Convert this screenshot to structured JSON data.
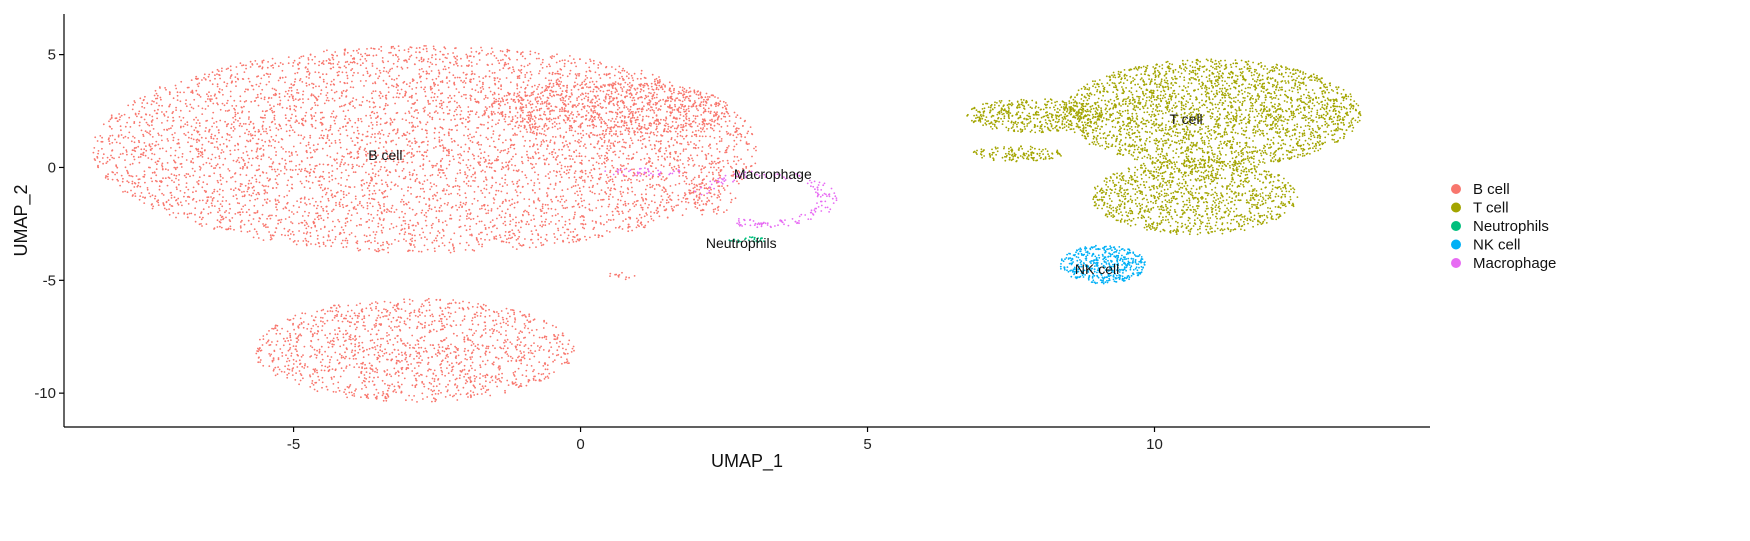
{
  "chart_data": {
    "type": "scatter",
    "xlabel": "UMAP_1",
    "ylabel": "UMAP_2",
    "xlim": [
      -9.0,
      14.8
    ],
    "ylim": [
      -11.5,
      6.8
    ],
    "x_ticks": [
      -5,
      0,
      5,
      10
    ],
    "y_ticks": [
      -10,
      -5,
      0,
      5
    ],
    "grid": false,
    "legend_position": "right",
    "series": [
      {
        "name": "B cell",
        "color": "#F8766D"
      },
      {
        "name": "T cell",
        "color": "#A3A500"
      },
      {
        "name": "Neutrophils",
        "color": "#00BF7D"
      },
      {
        "name": "NK cell",
        "color": "#00B0F6"
      },
      {
        "name": "Macrophage",
        "color": "#E76BF3"
      }
    ],
    "clusters": [
      {
        "series": "B cell",
        "shape": "ellipse",
        "cx": -2.7,
        "cy": 0.8,
        "rx": 5.8,
        "ry": 4.6,
        "n": 5200
      },
      {
        "series": "B cell",
        "shape": "ellipse",
        "cx": -2.9,
        "cy": -8.1,
        "rx": 2.8,
        "ry": 2.3,
        "n": 1400
      },
      {
        "series": "B cell",
        "shape": "ellipse",
        "cx": 0.5,
        "cy": 2.6,
        "rx": 2.1,
        "ry": 1.2,
        "n": 700
      },
      {
        "series": "B cell",
        "shape": "ellipse",
        "cx": 2.3,
        "cy": -1.3,
        "rx": 0.45,
        "ry": 0.9,
        "n": 60
      },
      {
        "series": "B cell",
        "shape": "ellipse",
        "cx": 0.7,
        "cy": -4.8,
        "rx": 0.25,
        "ry": 0.2,
        "n": 12
      },
      {
        "series": "T cell",
        "shape": "ellipse",
        "cx": 11.0,
        "cy": 2.4,
        "rx": 2.6,
        "ry": 2.4,
        "n": 2600
      },
      {
        "series": "T cell",
        "shape": "ellipse",
        "cx": 10.7,
        "cy": -1.3,
        "rx": 1.8,
        "ry": 1.7,
        "n": 1200
      },
      {
        "series": "T cell",
        "shape": "ellipse",
        "cx": 7.9,
        "cy": 2.3,
        "rx": 1.2,
        "ry": 0.75,
        "n": 450
      },
      {
        "series": "T cell",
        "shape": "ellipse",
        "cx": 7.6,
        "cy": 0.6,
        "rx": 0.8,
        "ry": 0.35,
        "n": 140
      },
      {
        "series": "Neutrophils",
        "shape": "ellipse",
        "cx": 2.9,
        "cy": -3.2,
        "rx": 0.35,
        "ry": 0.12,
        "n": 25
      },
      {
        "series": "NK cell",
        "shape": "ellipse",
        "cx": 9.1,
        "cy": -4.3,
        "rx": 0.75,
        "ry": 0.85,
        "n": 450
      },
      {
        "series": "Macrophage",
        "shape": "arc",
        "cx": 3.2,
        "cy": -1.4,
        "r": 1.1,
        "from_deg": -120,
        "to_deg": 170,
        "n": 160
      },
      {
        "series": "Macrophage",
        "shape": "ellipse",
        "cx": 1.1,
        "cy": -0.2,
        "rx": 0.7,
        "ry": 0.18,
        "n": 40
      }
    ],
    "annotations": [
      {
        "text": "B cell",
        "x": -3.4,
        "y": 0.55
      },
      {
        "text": "T cell",
        "x": 10.55,
        "y": 2.15
      },
      {
        "text": "Macrophage",
        "x": 3.35,
        "y": -0.3
      },
      {
        "text": "Neutrophils",
        "x": 2.8,
        "y": -3.35
      },
      {
        "text": "NK cell",
        "x": 9.0,
        "y": -4.5
      }
    ]
  }
}
